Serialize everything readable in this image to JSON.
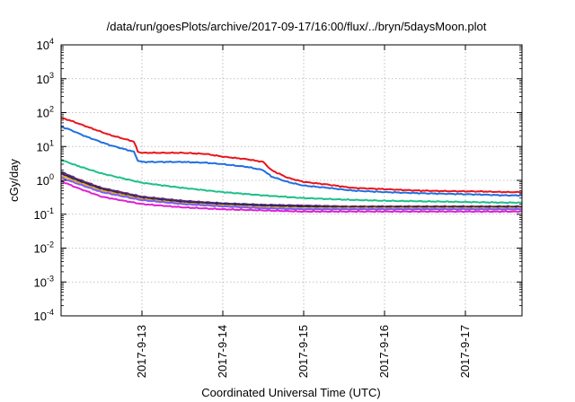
{
  "chart_data": {
    "type": "line",
    "title": "/data/run/goesPlots/archive/2017-09-17/16:00/flux/../bryn/5daysMoon.plot",
    "xlabel": "Coordinated Universal Time (UTC)",
    "ylabel": "cGy/day",
    "yscale": "log",
    "ylim": [
      0.0001,
      10000
    ],
    "xlim": [
      0,
      5.7
    ],
    "y_ticks": [
      {
        "base": "10",
        "exp": "-4",
        "value": 0.0001
      },
      {
        "base": "10",
        "exp": "-3",
        "value": 0.001
      },
      {
        "base": "10",
        "exp": "-2",
        "value": 0.01
      },
      {
        "base": "10",
        "exp": "-1",
        "value": 0.1
      },
      {
        "base": "10",
        "exp": "0",
        "value": 1
      },
      {
        "base": "10",
        "exp": "1",
        "value": 10
      },
      {
        "base": "10",
        "exp": "2",
        "value": 100
      },
      {
        "base": "10",
        "exp": "3",
        "value": 1000
      },
      {
        "base": "10",
        "exp": "4",
        "value": 10000
      }
    ],
    "x_ticks": [
      {
        "label": "2017-9-13",
        "value": 1
      },
      {
        "label": "2017-9-14",
        "value": 2
      },
      {
        "label": "2017-9-15",
        "value": 3
      },
      {
        "label": "2017-9-16",
        "value": 4
      },
      {
        "label": "2017-9-17",
        "value": 5
      }
    ],
    "grid": true,
    "series": [
      {
        "color": "#e8141c",
        "x": [
          0,
          0.1,
          0.3,
          0.6,
          0.9,
          0.95,
          1.0,
          1.5,
          1.8,
          2.0,
          2.3,
          2.5,
          2.6,
          2.8,
          3.0,
          3.3,
          3.6,
          4.0,
          4.4,
          4.8,
          5.2,
          5.5,
          5.7
        ],
        "y": [
          70,
          60,
          40,
          22,
          14,
          7,
          6.5,
          6.5,
          6.0,
          5.0,
          4.2,
          3.5,
          2.0,
          1.2,
          0.9,
          0.75,
          0.6,
          0.55,
          0.5,
          0.48,
          0.47,
          0.45,
          0.45
        ]
      },
      {
        "color": "#1f6fe0",
        "x": [
          0,
          0.1,
          0.3,
          0.6,
          0.9,
          0.95,
          1.0,
          1.5,
          1.8,
          2.0,
          2.3,
          2.5,
          2.6,
          2.8,
          3.0,
          3.3,
          3.6,
          4.0,
          4.4,
          4.8,
          5.2,
          5.5,
          5.7
        ],
        "y": [
          38,
          32,
          20,
          11,
          7,
          3.8,
          3.5,
          3.5,
          3.3,
          3.0,
          2.5,
          2.0,
          1.3,
          0.9,
          0.7,
          0.6,
          0.5,
          0.45,
          0.42,
          0.4,
          0.38,
          0.36,
          0.36
        ]
      },
      {
        "color": "#1dbf8a",
        "x": [
          0,
          0.2,
          0.5,
          1.0,
          1.5,
          2.0,
          2.5,
          3.0,
          3.5,
          4.0,
          4.5,
          5.0,
          5.5,
          5.7
        ],
        "y": [
          4,
          2.7,
          1.6,
          0.85,
          0.6,
          0.45,
          0.36,
          0.3,
          0.27,
          0.25,
          0.24,
          0.23,
          0.22,
          0.22
        ]
      },
      {
        "color": "#6a2c70",
        "x": [
          0,
          0.2,
          0.5,
          1.0,
          1.5,
          2.0,
          2.5,
          3.0,
          3.5,
          4.0,
          4.5,
          5.0,
          5.5,
          5.7
        ],
        "y": [
          1.8,
          1.1,
          0.6,
          0.33,
          0.25,
          0.21,
          0.19,
          0.18,
          0.17,
          0.17,
          0.17,
          0.17,
          0.17,
          0.17
        ]
      },
      {
        "color": "#22226e",
        "x": [
          0,
          0.2,
          0.5,
          1.0,
          1.5,
          2.0,
          2.5,
          3.0,
          3.5,
          4.0,
          4.5,
          5.0,
          5.5,
          5.7
        ],
        "y": [
          1.6,
          1.0,
          0.55,
          0.3,
          0.23,
          0.2,
          0.18,
          0.17,
          0.16,
          0.16,
          0.16,
          0.16,
          0.16,
          0.16
        ]
      },
      {
        "color": "#e6a817",
        "x": [
          0,
          0.2,
          0.5,
          1.0,
          1.5,
          2.0,
          2.5,
          3.0,
          3.5,
          4.0,
          4.5,
          5.0,
          5.5,
          5.7
        ],
        "y": [
          1.4,
          0.9,
          0.5,
          0.28,
          0.21,
          0.18,
          0.16,
          0.15,
          0.15,
          0.15,
          0.15,
          0.15,
          0.15,
          0.15
        ]
      },
      {
        "color": "#7b5cff",
        "x": [
          0,
          0.2,
          0.5,
          1.0,
          1.5,
          2.0,
          2.5,
          3.0,
          3.5,
          4.0,
          4.5,
          5.0,
          5.5,
          5.7
        ],
        "y": [
          1.2,
          0.8,
          0.45,
          0.26,
          0.2,
          0.17,
          0.15,
          0.14,
          0.14,
          0.14,
          0.14,
          0.14,
          0.14,
          0.14
        ]
      },
      {
        "color": "#e020d0",
        "x": [
          0,
          0.2,
          0.5,
          1.0,
          1.5,
          2.0,
          2.5,
          3.0,
          3.5,
          4.0,
          4.5,
          5.0,
          5.5,
          5.7
        ],
        "y": [
          0.95,
          0.6,
          0.33,
          0.2,
          0.16,
          0.14,
          0.13,
          0.12,
          0.12,
          0.12,
          0.12,
          0.12,
          0.12,
          0.12
        ]
      }
    ]
  }
}
